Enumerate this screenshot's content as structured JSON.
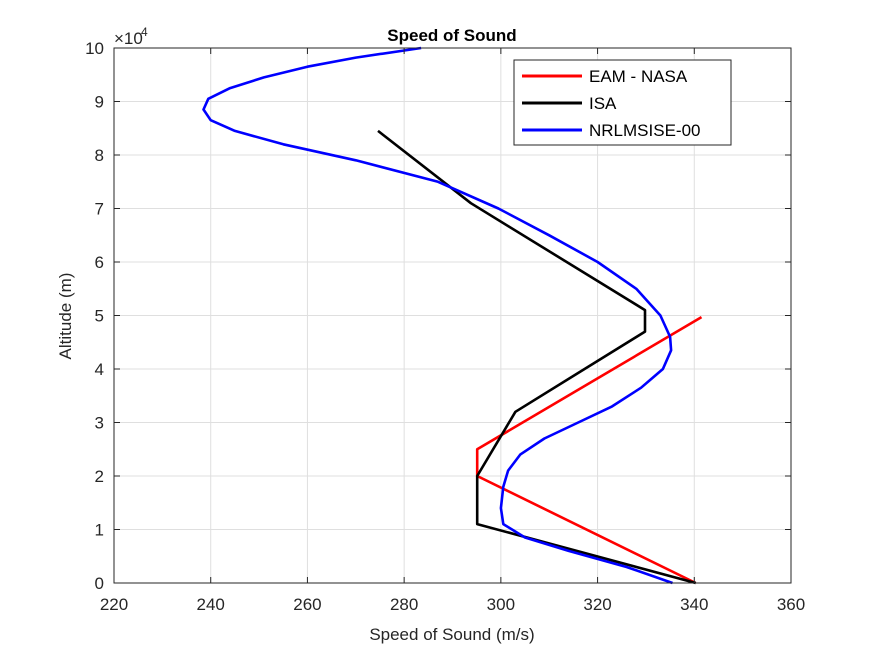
{
  "chart_data": {
    "type": "line",
    "title": "Speed of Sound",
    "xlabel": "Speed of Sound (m/s)",
    "ylabel": "Altitude (m)",
    "xlim": [
      220,
      360
    ],
    "ylim": [
      0,
      100000
    ],
    "x_ticks": [
      "220",
      "240",
      "260",
      "280",
      "300",
      "320",
      "340",
      "360"
    ],
    "y_ticks": [
      "0",
      "1",
      "2",
      "3",
      "4",
      "5",
      "6",
      "7",
      "8",
      "9",
      "10"
    ],
    "y_exponent": {
      "base": "×10",
      "power": "4"
    },
    "grid": true,
    "legend_position": "top-right",
    "series": [
      {
        "name": "EAM - NASA",
        "color": "#ff0000",
        "points": [
          [
            340.3,
            0
          ],
          [
            295.1,
            20000
          ],
          [
            295.1,
            25000
          ],
          [
            341.5,
            49700
          ]
        ]
      },
      {
        "name": "ISA",
        "color": "#000000",
        "points": [
          [
            340.3,
            0
          ],
          [
            295.1,
            11000
          ],
          [
            295.1,
            20000
          ],
          [
            303.0,
            32000
          ],
          [
            329.8,
            47000
          ],
          [
            329.8,
            51000
          ],
          [
            293.8,
            71000
          ],
          [
            274.6,
            84500
          ]
        ]
      },
      {
        "name": "NRLMSISE-00",
        "color": "#0000ff",
        "points": [
          [
            335.5,
            0
          ],
          [
            326.0,
            3000
          ],
          [
            314.0,
            6000
          ],
          [
            305.0,
            8500
          ],
          [
            300.5,
            11000
          ],
          [
            300.0,
            14000
          ],
          [
            300.5,
            18000
          ],
          [
            301.5,
            21000
          ],
          [
            304.0,
            24000
          ],
          [
            309.0,
            27000
          ],
          [
            316.0,
            30000
          ],
          [
            323.0,
            33000
          ],
          [
            329.0,
            36500
          ],
          [
            333.5,
            40000
          ],
          [
            335.2,
            43500
          ],
          [
            335.0,
            46000
          ],
          [
            333.0,
            50000
          ],
          [
            328.0,
            55000
          ],
          [
            320.0,
            60000
          ],
          [
            310.0,
            65000
          ],
          [
            299.5,
            70000
          ],
          [
            287.0,
            75000
          ],
          [
            270.0,
            79000
          ],
          [
            255.0,
            82000
          ],
          [
            245.0,
            84500
          ],
          [
            240.0,
            86500
          ],
          [
            238.5,
            88500
          ],
          [
            239.5,
            90500
          ],
          [
            244.0,
            92500
          ],
          [
            251.0,
            94500
          ],
          [
            260.0,
            96500
          ],
          [
            270.0,
            98200
          ],
          [
            283.5,
            100000
          ]
        ]
      }
    ]
  }
}
